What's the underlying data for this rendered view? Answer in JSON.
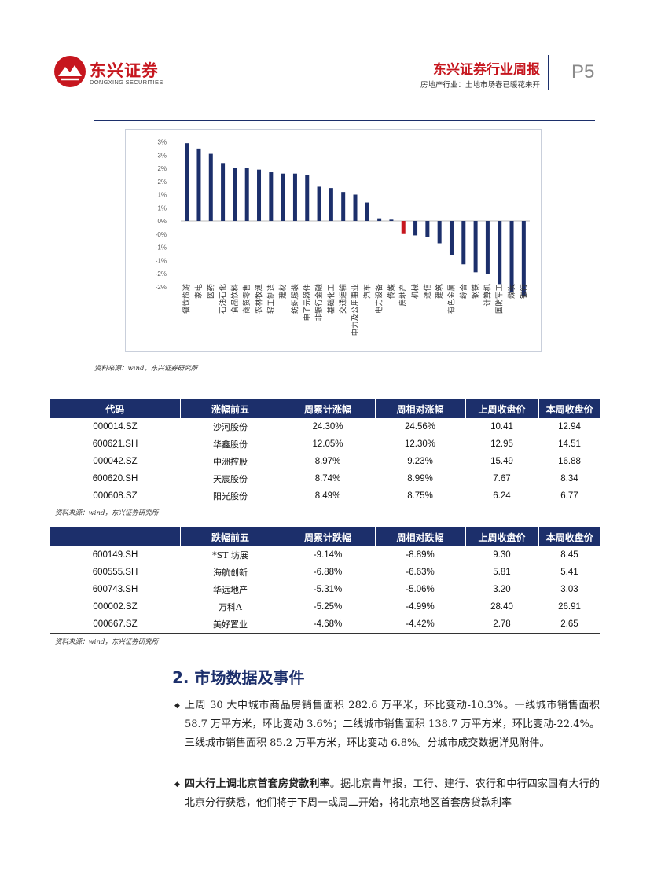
{
  "header": {
    "logo_cn": "东兴证券",
    "logo_en": "DONGXING SECURITIES",
    "title": "东兴证券行业周报",
    "subtitle": "房地产行业：土地市场春已暖花未开",
    "page": "P5"
  },
  "chart_data": {
    "type": "bar",
    "categories": [
      "餐饮旅游",
      "家电",
      "医药",
      "石油石化",
      "食品饮料",
      "商贸零售",
      "农林牧渔",
      "轻工制造",
      "建材",
      "纺织服装",
      "电子元器件",
      "非银行金融",
      "基础化工",
      "交通运输",
      "电力及公用事业",
      "汽车",
      "电力设备",
      "传媒",
      "房地产",
      "机械",
      "通信",
      "建筑",
      "有色金属",
      "综合",
      "钢铁",
      "计算机",
      "国防军工",
      "煤炭",
      "银行"
    ],
    "values": [
      2.95,
      2.75,
      2.55,
      2.2,
      2.0,
      2.0,
      1.95,
      1.85,
      1.8,
      1.8,
      1.75,
      1.3,
      1.25,
      1.1,
      1.0,
      0.7,
      0.1,
      0.05,
      -0.5,
      -0.55,
      -0.6,
      -0.85,
      -1.3,
      -1.65,
      -1.95,
      -2.0,
      -2.4,
      -2.7,
      -2.85
    ],
    "highlight_index": 18,
    "y_ticks": [
      "3%",
      "3%",
      "2%",
      "2%",
      "1%",
      "1%",
      "0%",
      "-0%",
      "-1%",
      "-1%",
      "-2%",
      "-2%"
    ],
    "bar_color": "#1c2f6b",
    "highlight_color": "#c6161e"
  },
  "chart_source": "资料来源：wind，东兴证券研究所",
  "gainers": {
    "headers": [
      "代码",
      "涨幅前五",
      "周累计涨幅",
      "周相对涨幅",
      "上周收盘价",
      "本周收盘价"
    ],
    "rows": [
      [
        "000014.SZ",
        "沙河股份",
        "24.30%",
        "24.56%",
        "10.41",
        "12.94"
      ],
      [
        "600621.SH",
        "华鑫股份",
        "12.05%",
        "12.30%",
        "12.95",
        "14.51"
      ],
      [
        "000042.SZ",
        "中洲控股",
        "8.97%",
        "9.23%",
        "15.49",
        "16.88"
      ],
      [
        "600620.SH",
        "天宸股份",
        "8.74%",
        "8.99%",
        "7.67",
        "8.34"
      ],
      [
        "000608.SZ",
        "阳光股份",
        "8.49%",
        "8.75%",
        "6.24",
        "6.77"
      ]
    ],
    "source": "资料来源：wind，东兴证券研究所"
  },
  "losers": {
    "headers": [
      "",
      "跌幅前五",
      "周累计跌幅",
      "周相对跌幅",
      "上周收盘价",
      "本周收盘价"
    ],
    "rows": [
      [
        "600149.SH",
        "*ST 坊展",
        "-9.14%",
        "-8.89%",
        "9.30",
        "8.45"
      ],
      [
        "600555.SH",
        "海航创新",
        "-6.88%",
        "-6.63%",
        "5.81",
        "5.41"
      ],
      [
        "600743.SH",
        "华远地产",
        "-5.31%",
        "-5.06%",
        "3.20",
        "3.03"
      ],
      [
        "000002.SZ",
        "万科A",
        "-5.25%",
        "-4.99%",
        "28.40",
        "26.91"
      ],
      [
        "000667.SZ",
        "美好置业",
        "-4.68%",
        "-4.42%",
        "2.78",
        "2.65"
      ]
    ],
    "source": "资料来源：wind，东兴证券研究所"
  },
  "section": {
    "title": "2. 市场数据及事件",
    "bullet_glyph": "◆",
    "p1": "上周 30 大中城市商品房销售面积 282.6 万平米，环比变动-10.3%。一线城市销售面积 58.7 万平方米，环比变动 3.6%；二线城市销售面积 138.7 万平方米，环比变动-22.4%。三线城市销售面积 85.2 万平方米，环比变动 6.8%。分城市成交数据详见附件。",
    "p2_bold": "四大行上调北京首套房贷款利率",
    "p2_rest": "。据北京青年报，工行、建行、农行和中行四家国有大行的北京分行获悉，他们将于下周一或周二开始，将北京地区首套房贷款利率"
  }
}
